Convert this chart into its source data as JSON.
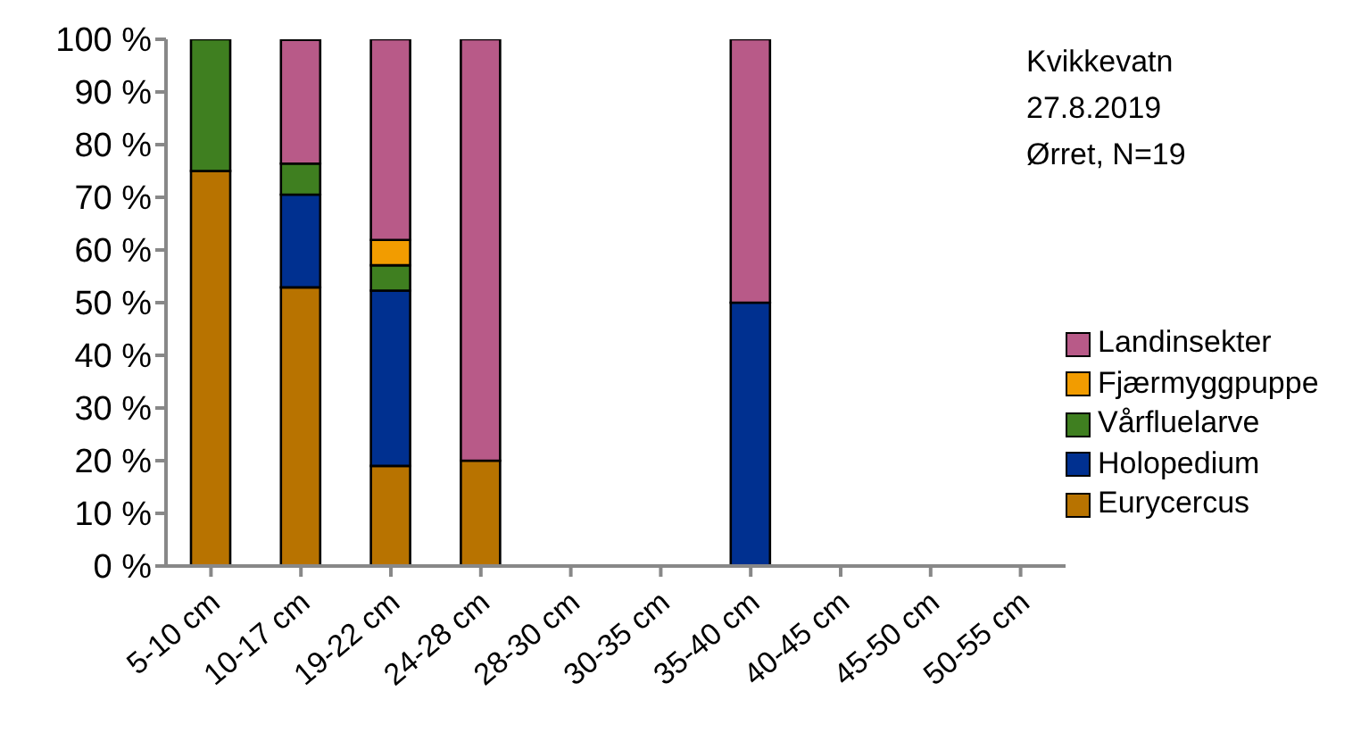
{
  "chart_data": {
    "type": "bar",
    "stacked": true,
    "categories": [
      "5-10 cm",
      "10-17 cm",
      "19-22 cm",
      "24-28 cm",
      "28-30 cm",
      "30-35 cm",
      "35-40 cm",
      "40-45 cm",
      "45-50 cm",
      "50-55 cm"
    ],
    "series": [
      {
        "name": "Eurycercus",
        "color": "#b87300",
        "values": [
          75,
          52.9,
          19,
          20,
          null,
          null,
          null,
          null,
          null,
          null
        ]
      },
      {
        "name": "Holopedium",
        "color": "#003090",
        "values": [
          null,
          17.6,
          33.3,
          null,
          null,
          null,
          50,
          null,
          null,
          null
        ]
      },
      {
        "name": "Vårfluelarve",
        "color": "#3f7f20",
        "values": [
          25,
          5.9,
          4.8,
          null,
          null,
          null,
          null,
          null,
          null,
          null
        ]
      },
      {
        "name": "Fjærmyggpuppe",
        "color": "#f29c00",
        "values": [
          null,
          null,
          4.8,
          null,
          null,
          null,
          null,
          null,
          null,
          null
        ]
      },
      {
        "name": "Landinsekter",
        "color": "#b85a88",
        "values": [
          null,
          23.5,
          38.1,
          80,
          null,
          null,
          50,
          null,
          null,
          null
        ]
      }
    ],
    "ylim": [
      0,
      100
    ],
    "yticks": [
      {
        "value": 0,
        "label": "0 %"
      },
      {
        "value": 10,
        "label": "10 %"
      },
      {
        "value": 20,
        "label": "20 %"
      },
      {
        "value": 30,
        "label": "30 %"
      },
      {
        "value": 40,
        "label": "40 %"
      },
      {
        "value": 50,
        "label": "50 %"
      },
      {
        "value": 60,
        "label": "60 %"
      },
      {
        "value": 70,
        "label": "70 %"
      },
      {
        "value": 80,
        "label": "80 %"
      },
      {
        "value": 90,
        "label": "90 %"
      },
      {
        "value": 100,
        "label": "100 %"
      }
    ],
    "annotations": [
      "Kvikkevatn",
      "27.8.2019",
      "Ørret, N=19"
    ],
    "legend": "right",
    "grid": false
  }
}
